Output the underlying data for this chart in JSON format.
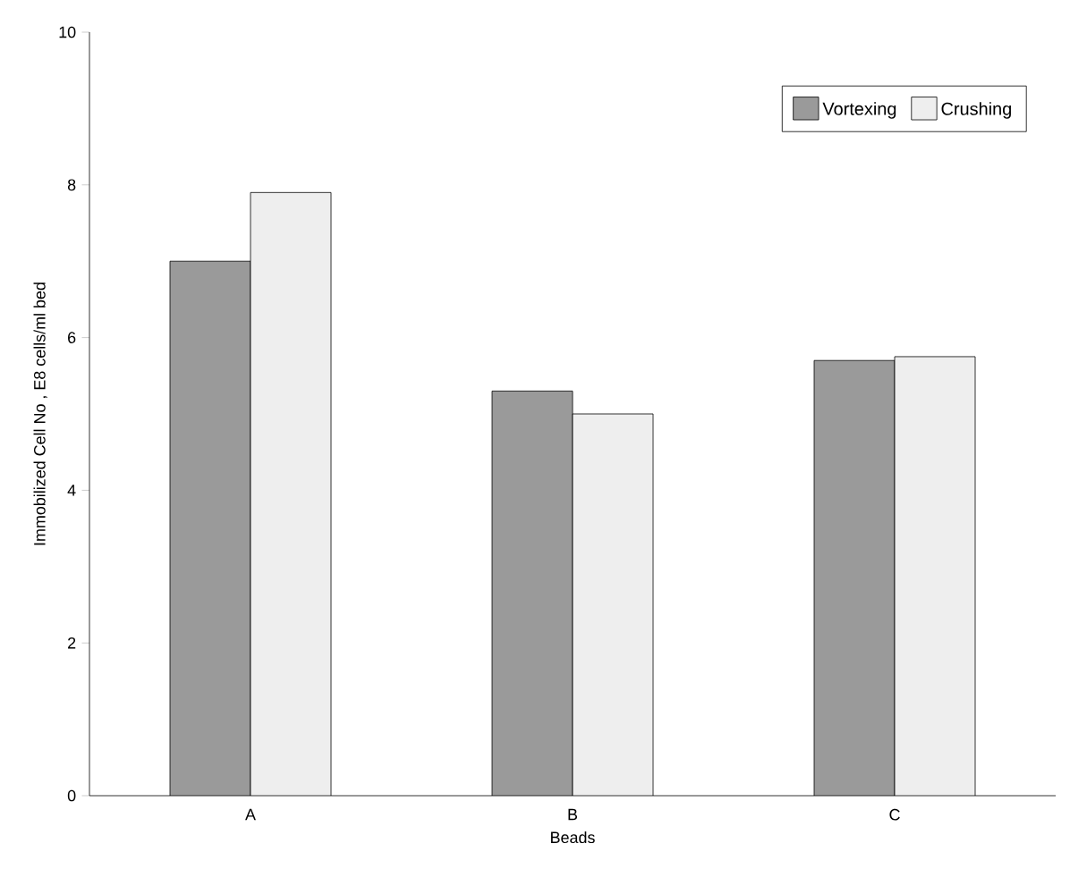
{
  "chart_data": {
    "type": "bar",
    "xlabel": "Beads",
    "ylabel": "Immobilized Cell No , E8 cells/ml bed",
    "categories": [
      "A",
      "B",
      "C"
    ],
    "series": [
      {
        "name": "Vortexing",
        "color": "#9a9a9a",
        "values": [
          7.0,
          5.3,
          5.7
        ]
      },
      {
        "name": "Crushing",
        "color": "#eeeeee",
        "values": [
          7.9,
          5.0,
          5.75
        ]
      }
    ],
    "ylim": [
      0,
      10
    ],
    "yticks": [
      0,
      2,
      4,
      6,
      8,
      10
    ],
    "legend": "top right",
    "grid": false
  }
}
